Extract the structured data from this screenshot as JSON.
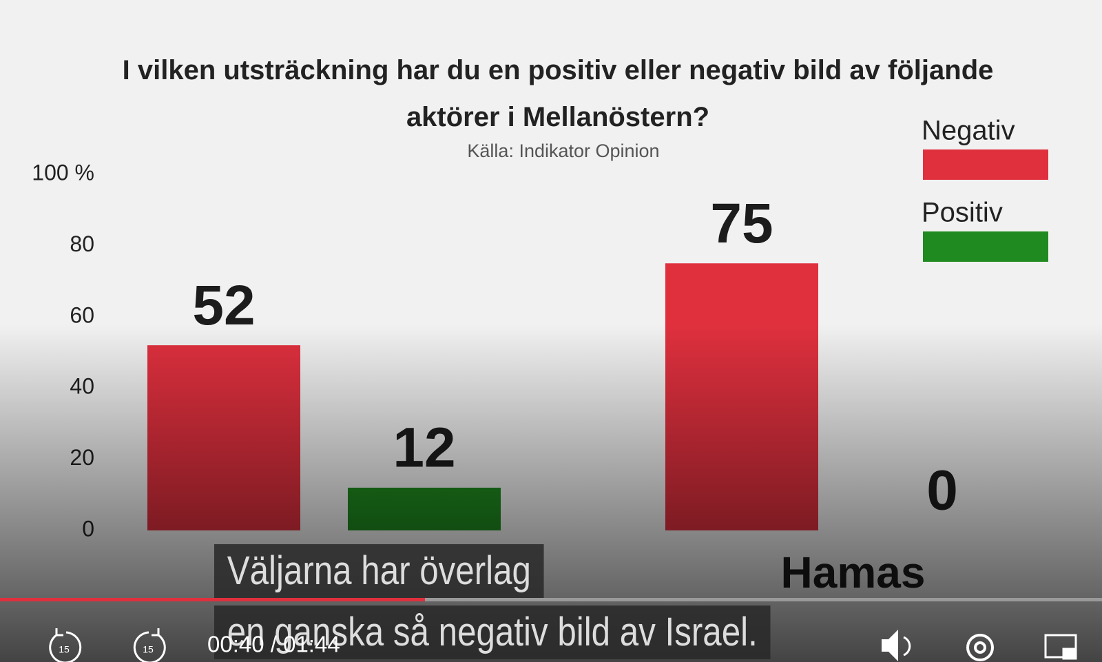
{
  "chart_data": {
    "type": "bar",
    "title": "I vilken utsträckning har du en positiv eller negativ bild av följande aktörer i Mellanöstern?",
    "subtitle": "Källa: Indikator Opinion",
    "categories": [
      null,
      "Hamas"
    ],
    "series": [
      {
        "name": "Negativ",
        "color": "#e0303e",
        "values": [
          52,
          75
        ]
      },
      {
        "name": "Positiv",
        "color": "#1f8a1f",
        "values": [
          12,
          0
        ]
      }
    ],
    "ylim": [
      0,
      100
    ],
    "yticks": [
      0,
      20,
      40,
      60,
      80,
      {
        "value": 100,
        "label": "100 %"
      }
    ],
    "legend": "top-right"
  },
  "player": {
    "captions": [
      "Väljarna har överlag",
      "en ganska så negativ bild av Israel."
    ],
    "time": "00:40 / 01:44",
    "skip_back": "15",
    "skip_forward": "15"
  }
}
